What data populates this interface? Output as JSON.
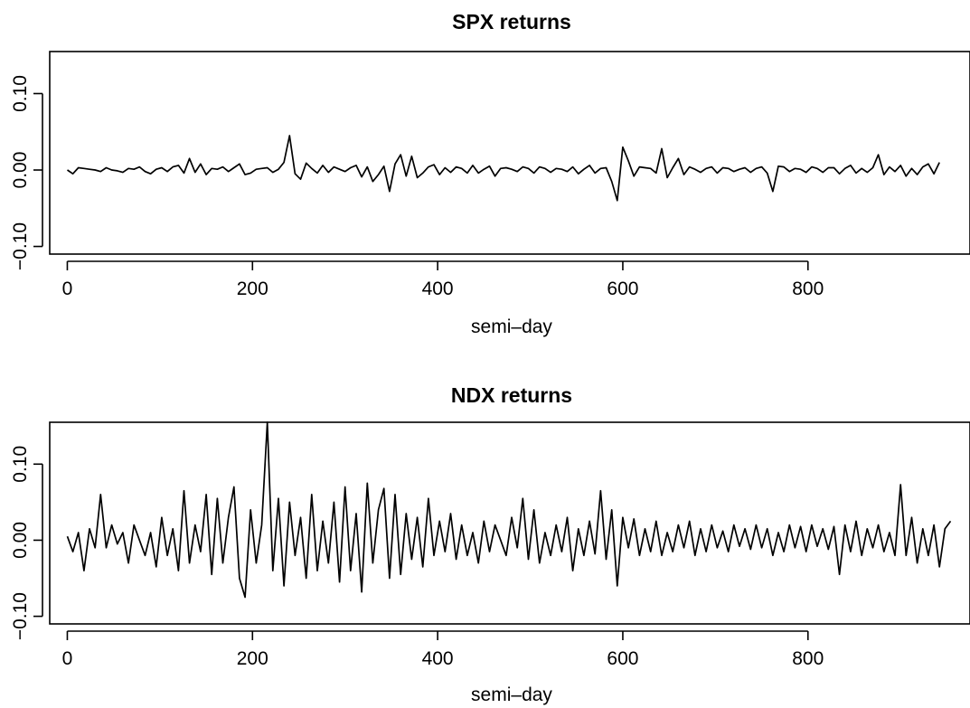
{
  "chart_data": [
    {
      "type": "line",
      "title": "SPX returns",
      "xlabel": "semi–day",
      "ylabel": "",
      "xlim": [
        -19,
        975
      ],
      "ylim": [
        -0.11,
        0.155
      ],
      "x_ticks": [
        0,
        200,
        400,
        600,
        800
      ],
      "x_tick_labels": [
        "0",
        "200",
        "400",
        "600",
        "800"
      ],
      "y_ticks": [
        -0.1,
        0.0,
        0.1
      ],
      "y_tick_labels": [
        "−0.10",
        "0.00",
        "0.10"
      ],
      "grid": false,
      "legend": "none",
      "line_color": "#000000",
      "series": [
        {
          "x_start": 0,
          "x_step": 6,
          "values": [
            0.0,
            -0.005,
            0.003,
            0.002,
            0.001,
            0.0,
            -0.002,
            0.003,
            0.0,
            -0.001,
            -0.003,
            0.002,
            0.001,
            0.004,
            -0.002,
            -0.005,
            0.001,
            0.003,
            -0.002,
            0.004,
            0.006,
            -0.004,
            0.015,
            -0.003,
            0.008,
            -0.006,
            0.002,
            0.001,
            0.004,
            -0.002,
            0.003,
            0.008,
            -0.006,
            -0.004,
            0.001,
            0.002,
            0.003,
            -0.003,
            0.001,
            0.01,
            0.045,
            -0.005,
            -0.012,
            0.009,
            0.002,
            -0.004,
            0.006,
            -0.003,
            0.004,
            0.001,
            -0.002,
            0.003,
            0.006,
            -0.009,
            0.004,
            -0.015,
            -0.006,
            0.005,
            -0.028,
            0.008,
            0.02,
            -0.008,
            0.018,
            -0.01,
            -0.004,
            0.004,
            0.007,
            -0.006,
            0.003,
            -0.003,
            0.004,
            0.002,
            -0.004,
            0.006,
            -0.004,
            0.001,
            0.005,
            -0.008,
            0.002,
            0.003,
            0.001,
            -0.002,
            0.004,
            0.002,
            -0.004,
            0.004,
            0.002,
            -0.003,
            0.002,
            0.001,
            -0.002,
            0.004,
            -0.005,
            0.001,
            0.006,
            -0.004,
            0.002,
            0.003,
            -0.015,
            -0.04,
            0.03,
            0.012,
            -0.008,
            0.004,
            0.003,
            0.002,
            -0.004,
            0.028,
            -0.01,
            0.003,
            0.015,
            -0.006,
            0.004,
            0.001,
            -0.003,
            0.002,
            0.004,
            -0.004,
            0.003,
            0.002,
            -0.002,
            0.001,
            0.003,
            -0.003,
            0.002,
            0.004,
            -0.004,
            -0.028,
            0.005,
            0.004,
            -0.002,
            0.002,
            0.001,
            -0.003,
            0.004,
            0.002,
            -0.003,
            0.003,
            0.003,
            -0.005,
            0.002,
            0.006,
            -0.004,
            0.002,
            -0.003,
            0.003,
            0.02,
            -0.006,
            0.004,
            -0.002,
            0.006,
            -0.008,
            0.002,
            -0.006,
            0.004,
            0.008,
            -0.005,
            0.01
          ]
        }
      ]
    },
    {
      "type": "line",
      "title": "NDX returns",
      "xlabel": "semi–day",
      "ylabel": "",
      "xlim": [
        -19,
        975
      ],
      "ylim": [
        -0.11,
        0.155
      ],
      "x_ticks": [
        0,
        200,
        400,
        600,
        800
      ],
      "x_tick_labels": [
        "0",
        "200",
        "400",
        "600",
        "800"
      ],
      "y_ticks": [
        -0.1,
        0.0,
        0.1
      ],
      "y_tick_labels": [
        "−0.10",
        "0.00",
        "0.10"
      ],
      "grid": false,
      "legend": "none",
      "line_color": "#000000",
      "series": [
        {
          "x_start": 0,
          "x_step": 6,
          "values": [
            0.005,
            -0.015,
            0.01,
            -0.04,
            0.015,
            -0.01,
            0.06,
            -0.01,
            0.02,
            -0.005,
            0.01,
            -0.03,
            0.02,
            0.0,
            -0.02,
            0.01,
            -0.035,
            0.03,
            -0.02,
            0.015,
            -0.04,
            0.065,
            -0.03,
            0.02,
            -0.015,
            0.06,
            -0.045,
            0.055,
            -0.03,
            0.03,
            0.07,
            -0.05,
            -0.075,
            0.04,
            -0.03,
            0.02,
            0.155,
            -0.04,
            0.055,
            -0.06,
            0.05,
            -0.02,
            0.03,
            -0.05,
            0.06,
            -0.04,
            0.025,
            -0.03,
            0.05,
            -0.055,
            0.07,
            -0.04,
            0.035,
            -0.068,
            0.075,
            -0.03,
            0.04,
            0.068,
            -0.05,
            0.06,
            -0.045,
            0.035,
            -0.025,
            0.03,
            -0.035,
            0.055,
            -0.02,
            0.025,
            -0.015,
            0.035,
            -0.025,
            0.02,
            -0.02,
            0.01,
            -0.03,
            0.025,
            -0.015,
            0.02,
            0.0,
            -0.02,
            0.03,
            -0.01,
            0.055,
            -0.025,
            0.04,
            -0.03,
            0.01,
            -0.02,
            0.02,
            -0.015,
            0.03,
            -0.04,
            0.015,
            -0.02,
            0.025,
            -0.018,
            0.065,
            -0.025,
            0.04,
            -0.06,
            0.03,
            -0.01,
            0.028,
            -0.02,
            0.015,
            -0.015,
            0.025,
            -0.02,
            0.01,
            -0.015,
            0.02,
            -0.01,
            0.025,
            -0.02,
            0.015,
            -0.015,
            0.02,
            -0.01,
            0.012,
            -0.015,
            0.02,
            -0.008,
            0.015,
            -0.012,
            0.02,
            -0.01,
            0.015,
            -0.02,
            0.01,
            -0.015,
            0.02,
            -0.01,
            0.018,
            -0.015,
            0.02,
            -0.008,
            0.015,
            -0.012,
            0.018,
            -0.045,
            0.02,
            -0.015,
            0.025,
            -0.02,
            0.015,
            -0.01,
            0.02,
            -0.015,
            0.01,
            -0.02,
            0.073,
            -0.02,
            0.03,
            -0.03,
            0.015,
            -0.02,
            0.02,
            -0.035,
            0.015,
            0.025
          ]
        }
      ]
    }
  ]
}
